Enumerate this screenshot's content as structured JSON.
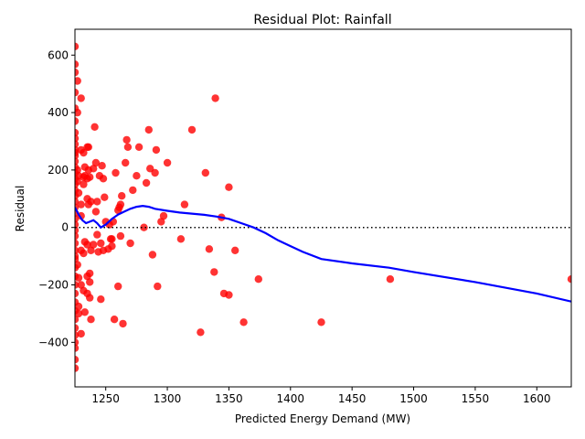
{
  "chart_data": {
    "type": "scatter",
    "title": "Residual Plot: Rainfall",
    "xlabel": "Predicted Energy Demand (MW)",
    "ylabel": "Residual",
    "xlim": [
      1225,
      1628
    ],
    "ylim": [
      -555,
      690
    ],
    "xticks": [
      1250,
      1300,
      1350,
      1400,
      1450,
      1500,
      1550,
      1600
    ],
    "yticks": [
      -400,
      -200,
      0,
      200,
      400,
      600
    ],
    "grid": false,
    "reference_line": {
      "y": 0,
      "style": "dotted",
      "color": "#000000"
    },
    "colors": {
      "points": "#ff0000",
      "smooth_line": "#0000ff"
    },
    "series": [
      {
        "kind": "points",
        "x": [
          1225,
          1225,
          1225,
          1225,
          1225,
          1225,
          1225,
          1225,
          1225,
          1225,
          1225,
          1225,
          1225,
          1225,
          1225,
          1225,
          1225,
          1225,
          1225,
          1225,
          1225,
          1225,
          1225,
          1225,
          1225,
          1225,
          1225,
          1225,
          1225,
          1225,
          1225,
          1225,
          1225,
          1225,
          1225,
          1225,
          1225,
          1225,
          1225,
          1225,
          1225,
          1225,
          1225,
          1227,
          1227,
          1227,
          1227,
          1227,
          1228,
          1228,
          1228,
          1228,
          1228,
          1230,
          1230,
          1230,
          1230,
          1230,
          1230,
          1230,
          1232,
          1232,
          1232,
          1232,
          1232,
          1233,
          1233,
          1233,
          1233,
          1235,
          1235,
          1235,
          1235,
          1235,
          1235,
          1236,
          1236,
          1236,
          1237,
          1237,
          1237,
          1237,
          1238,
          1238,
          1238,
          1240,
          1240,
          1241,
          1242,
          1242,
          1243,
          1243,
          1244,
          1245,
          1246,
          1246,
          1247,
          1248,
          1248,
          1249,
          1250,
          1252,
          1253,
          1254,
          1255,
          1255,
          1256,
          1257,
          1258,
          1260,
          1260,
          1261,
          1262,
          1262,
          1263,
          1264,
          1266,
          1267,
          1268,
          1270,
          1272,
          1275,
          1277,
          1281,
          1283,
          1285,
          1286,
          1288,
          1290,
          1291,
          1292,
          1295,
          1297,
          1300,
          1311,
          1314,
          1320,
          1327,
          1331,
          1334,
          1338,
          1339,
          1344,
          1346,
          1350,
          1350,
          1355,
          1362,
          1374,
          1425,
          1481,
          1628
        ],
        "y": [
          630,
          568,
          540,
          470,
          415,
          370,
          330,
          310,
          290,
          270,
          250,
          230,
          210,
          190,
          170,
          150,
          130,
          110,
          90,
          70,
          50,
          30,
          10,
          -10,
          -30,
          -55,
          -80,
          -110,
          -140,
          -170,
          -200,
          -230,
          -260,
          -290,
          -320,
          -350,
          -375,
          -400,
          -420,
          -460,
          -490,
          260,
          -100,
          510,
          400,
          200,
          160,
          -130,
          180,
          120,
          -175,
          -275,
          -300,
          450,
          270,
          80,
          40,
          -80,
          -200,
          -370,
          260,
          175,
          150,
          -90,
          -220,
          210,
          180,
          -50,
          -295,
          280,
          170,
          100,
          -60,
          -170,
          -230,
          280,
          200,
          80,
          175,
          -160,
          -190,
          -245,
          90,
          -320,
          -80,
          205,
          -60,
          350,
          225,
          55,
          90,
          -25,
          -85,
          180,
          -55,
          -250,
          215,
          -80,
          170,
          105,
          20,
          -75,
          10,
          -40,
          -40,
          -65,
          20,
          -320,
          190,
          -205,
          60,
          70,
          -30,
          80,
          110,
          -335,
          225,
          305,
          280,
          -55,
          130,
          180,
          280,
          0,
          155,
          340,
          205,
          -95,
          190,
          270,
          -205,
          20,
          40,
          225,
          -40,
          80,
          340,
          -365,
          190,
          -75,
          -155,
          450,
          35,
          -230,
          -235,
          140,
          -80,
          -330,
          -180,
          -330,
          -180,
          -180
        ]
      },
      {
        "kind": "line",
        "x": [
          1225,
          1228,
          1231,
          1234,
          1237,
          1240,
          1243,
          1246,
          1250,
          1255,
          1260,
          1265,
          1270,
          1275,
          1280,
          1285,
          1290,
          1300,
          1310,
          1320,
          1330,
          1340,
          1350,
          1360,
          1370,
          1380,
          1390,
          1400,
          1410,
          1425,
          1450,
          1480,
          1500,
          1550,
          1600,
          1628
        ],
        "y": [
          70,
          45,
          25,
          15,
          20,
          25,
          15,
          0,
          10,
          30,
          45,
          55,
          65,
          72,
          75,
          72,
          65,
          58,
          52,
          48,
          44,
          38,
          30,
          15,
          0,
          -20,
          -45,
          -65,
          -85,
          -110,
          -125,
          -140,
          -155,
          -190,
          -230,
          -258
        ]
      }
    ]
  }
}
